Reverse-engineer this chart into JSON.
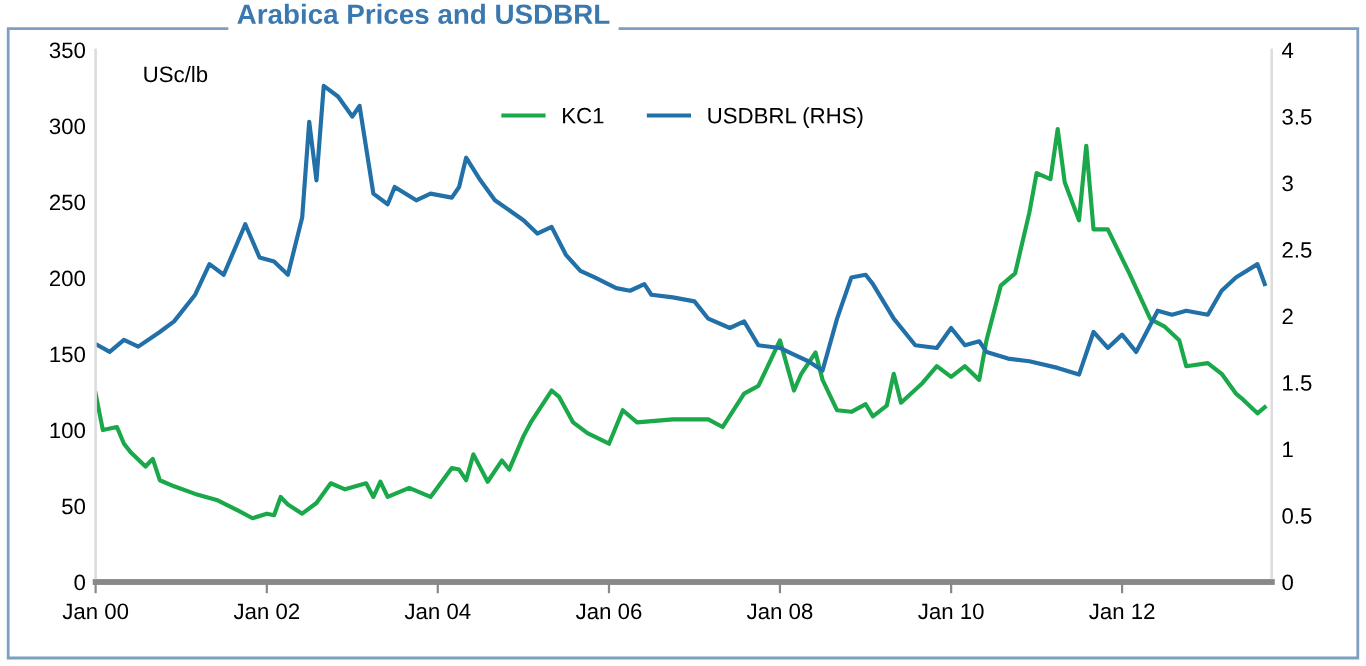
{
  "chart_data": {
    "type": "line",
    "title": "Arabica Prices and USDBRL",
    "ylabel": "USc/lb",
    "xlim": [
      "2000-01",
      "2013-10"
    ],
    "xticks": [
      {
        "value": "2000-01",
        "label": "Jan 00"
      },
      {
        "value": "2002-01",
        "label": "Jan 02"
      },
      {
        "value": "2004-01",
        "label": "Jan 04"
      },
      {
        "value": "2006-01",
        "label": "Jan 06"
      },
      {
        "value": "2008-01",
        "label": "Jan 08"
      },
      {
        "value": "2010-01",
        "label": "Jan 10"
      },
      {
        "value": "2012-01",
        "label": "Jan 12"
      }
    ],
    "ylim": [
      0,
      350
    ],
    "yticks": [
      0,
      50,
      100,
      150,
      200,
      250,
      300,
      350
    ],
    "y2lim": [
      0,
      4
    ],
    "y2ticks": [
      0,
      0.5,
      1,
      1.5,
      2,
      2.5,
      3,
      3.5,
      4
    ],
    "grid": false,
    "legend": "top",
    "marker": "none",
    "line_style": "solid",
    "series": [
      {
        "name": "KC1",
        "color": "#1aa84a",
        "x": [
          "2000-01",
          "2000-02",
          "2000-04",
          "2000-05",
          "2000-06",
          "2000-08",
          "2000-09",
          "2000-10",
          "2000-12",
          "2001-03",
          "2001-06",
          "2001-09",
          "2001-11",
          "2002-01",
          "2002-02",
          "2002-03",
          "2002-04",
          "2002-06",
          "2002-08",
          "2002-10",
          "2002-12",
          "2003-03",
          "2003-04",
          "2003-05",
          "2003-06",
          "2003-09",
          "2003-12",
          "2004-03",
          "2004-04",
          "2004-05",
          "2004-06",
          "2004-08",
          "2004-10",
          "2004-11",
          "2005-01",
          "2005-02",
          "2005-05",
          "2005-06",
          "2005-08",
          "2005-10",
          "2006-01",
          "2006-03",
          "2006-05",
          "2006-10",
          "2007-03",
          "2007-05",
          "2007-08",
          "2007-10",
          "2008-01",
          "2008-03",
          "2008-04",
          "2008-06",
          "2008-07",
          "2008-09",
          "2008-11",
          "2009-01",
          "2009-02",
          "2009-04",
          "2009-05",
          "2009-06",
          "2009-09",
          "2009-11",
          "2010-01",
          "2010-03",
          "2010-05",
          "2010-06",
          "2010-08",
          "2010-10",
          "2010-12",
          "2011-01",
          "2011-03",
          "2011-04",
          "2011-05",
          "2011-07",
          "2011-08",
          "2011-09",
          "2011-11",
          "2012-02",
          "2012-05",
          "2012-07",
          "2012-09",
          "2012-10",
          "2013-01",
          "2013-03",
          "2013-05",
          "2013-06",
          "2013-08",
          "2013-09"
        ],
        "values": [
          124,
          100,
          102,
          91,
          85,
          76,
          81,
          67,
          63,
          58,
          54,
          47,
          42,
          45,
          44,
          56,
          51,
          45,
          52,
          65,
          61,
          65,
          56,
          66,
          56,
          62,
          56,
          75,
          74,
          67,
          84,
          66,
          80,
          74,
          96,
          105,
          126,
          122,
          105,
          98,
          91,
          113,
          105,
          107,
          107,
          102,
          124,
          129,
          159,
          126,
          137,
          151,
          133,
          113,
          112,
          117,
          109,
          116,
          137,
          118,
          131,
          142,
          135,
          142,
          133,
          159,
          195,
          203,
          243,
          269,
          265,
          298,
          263,
          238,
          287,
          232,
          232,
          203,
          173,
          168,
          159,
          142,
          144,
          137,
          124,
          120,
          111,
          115
        ]
      },
      {
        "name": "USDBRL (RHS)",
        "color": "#2270a8",
        "axis": "y2",
        "x": [
          "2000-01",
          "2000-03",
          "2000-05",
          "2000-07",
          "2000-10",
          "2000-12",
          "2001-03",
          "2001-05",
          "2001-07",
          "2001-10",
          "2001-12",
          "2002-02",
          "2002-04",
          "2002-06",
          "2002-07",
          "2002-08",
          "2002-09",
          "2002-11",
          "2003-01",
          "2003-02",
          "2003-04",
          "2003-06",
          "2003-07",
          "2003-10",
          "2003-12",
          "2004-03",
          "2004-04",
          "2004-05",
          "2004-07",
          "2004-09",
          "2005-01",
          "2005-03",
          "2005-05",
          "2005-07",
          "2005-09",
          "2005-11",
          "2006-02",
          "2006-04",
          "2006-06",
          "2006-07",
          "2006-10",
          "2007-01",
          "2007-03",
          "2007-06",
          "2007-08",
          "2007-10",
          "2008-01",
          "2008-03",
          "2008-05",
          "2008-07",
          "2008-09",
          "2008-11",
          "2009-01",
          "2009-02",
          "2009-05",
          "2009-08",
          "2009-11",
          "2010-01",
          "2010-03",
          "2010-05",
          "2010-06",
          "2010-09",
          "2010-12",
          "2011-04",
          "2011-07",
          "2011-09",
          "2011-11",
          "2012-01",
          "2012-03",
          "2012-06",
          "2012-08",
          "2012-10",
          "2013-01",
          "2013-03",
          "2013-05",
          "2013-08",
          "2013-09"
        ],
        "values": [
          1.79,
          1.73,
          1.82,
          1.77,
          1.88,
          1.96,
          2.16,
          2.39,
          2.31,
          2.69,
          2.44,
          2.41,
          2.31,
          2.74,
          3.46,
          3.02,
          3.73,
          3.65,
          3.5,
          3.58,
          2.92,
          2.84,
          2.97,
          2.87,
          2.92,
          2.89,
          2.97,
          3.19,
          3.02,
          2.87,
          2.72,
          2.62,
          2.67,
          2.46,
          2.34,
          2.29,
          2.21,
          2.19,
          2.24,
          2.16,
          2.14,
          2.11,
          1.98,
          1.91,
          1.96,
          1.78,
          1.76,
          1.71,
          1.66,
          1.59,
          1.98,
          2.29,
          2.31,
          2.24,
          1.98,
          1.78,
          1.76,
          1.91,
          1.78,
          1.81,
          1.73,
          1.68,
          1.66,
          1.61,
          1.56,
          1.88,
          1.76,
          1.86,
          1.73,
          2.04,
          2.01,
          2.04,
          2.01,
          2.19,
          2.29,
          2.39,
          2.24
        ]
      }
    ]
  }
}
